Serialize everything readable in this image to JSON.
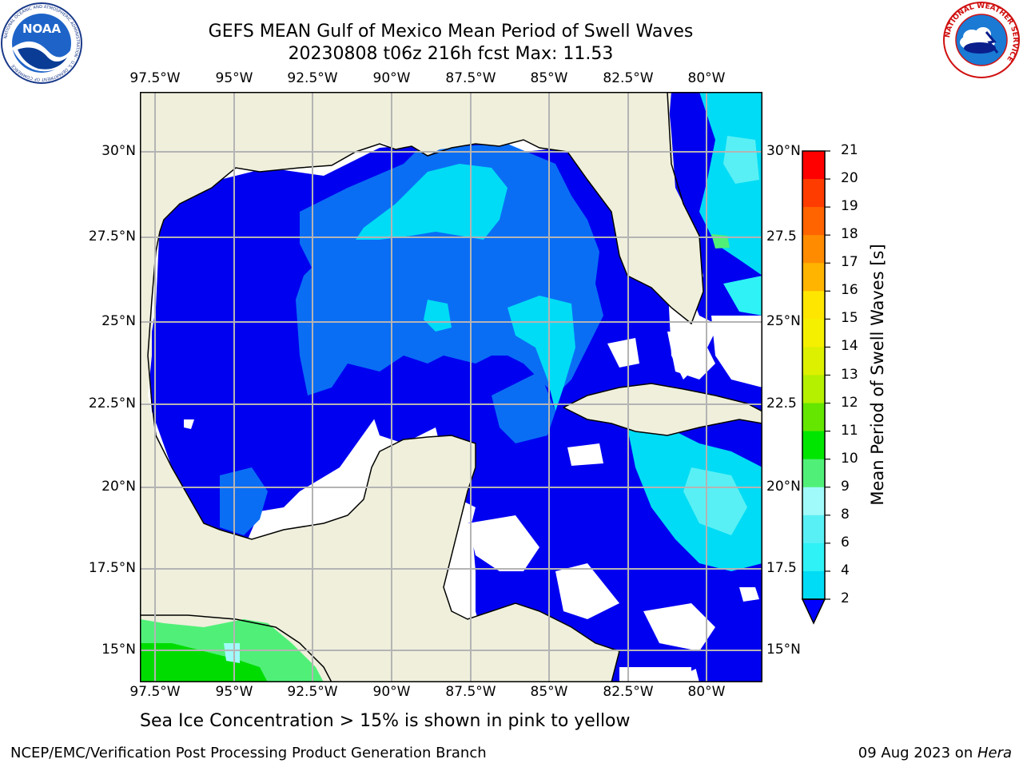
{
  "header": {
    "title_line1": "GEFS MEAN Gulf of Mexico Mean Period of Swell Waves",
    "title_line2": "20230808 t06z 216h fcst   Max: 11.53"
  },
  "logos": {
    "left": "NOAA",
    "left_ring_text": "NATIONAL OCEANIC AND ATMOSPHERIC ADMINISTRATION · U.S. DEPARTMENT OF COMMERCE",
    "right_ring_text": "NATIONAL WEATHER SERVICE"
  },
  "map": {
    "lon_labels": [
      "97.5°W",
      "95°W",
      "92.5°W",
      "90°W",
      "87.5°W",
      "85°W",
      "82.5°W",
      "80°W"
    ],
    "lat_labels": [
      "30°N",
      "27.5°N",
      "25°N",
      "22.5°N",
      "20°N",
      "17.5°N",
      "15°N"
    ],
    "lat_labels_right": [
      "30°N",
      "27.5",
      "25°N",
      "22.5",
      "20°N",
      "17.5",
      "15°N"
    ]
  },
  "colorbar": {
    "label": "Mean Period of Swell Waves [s]",
    "ticks": [
      "2",
      "4",
      "6",
      "8",
      "9",
      "10",
      "11",
      "12",
      "13",
      "14",
      "15",
      "16",
      "17",
      "18",
      "19",
      "20",
      "21"
    ],
    "colors": [
      "#0a6ef5",
      "#00dcf5",
      "#2ef2f6",
      "#58f0f5",
      "#a0fafa",
      "#50f078",
      "#00e600",
      "#64e600",
      "#b4f000",
      "#dcf000",
      "#f5f000",
      "#ffe600",
      "#ffb400",
      "#ff8c00",
      "#ff6400",
      "#ff3c00",
      "#ff0000"
    ],
    "extend_color": "#0000ff"
  },
  "footer": {
    "note": "Sea Ice Concentration > 15% is shown in pink to yellow",
    "credit": "NCEP/EMC/Verification Post Processing Product Generation Branch",
    "date": "09 Aug 2023 on ",
    "host": "Hera"
  }
}
